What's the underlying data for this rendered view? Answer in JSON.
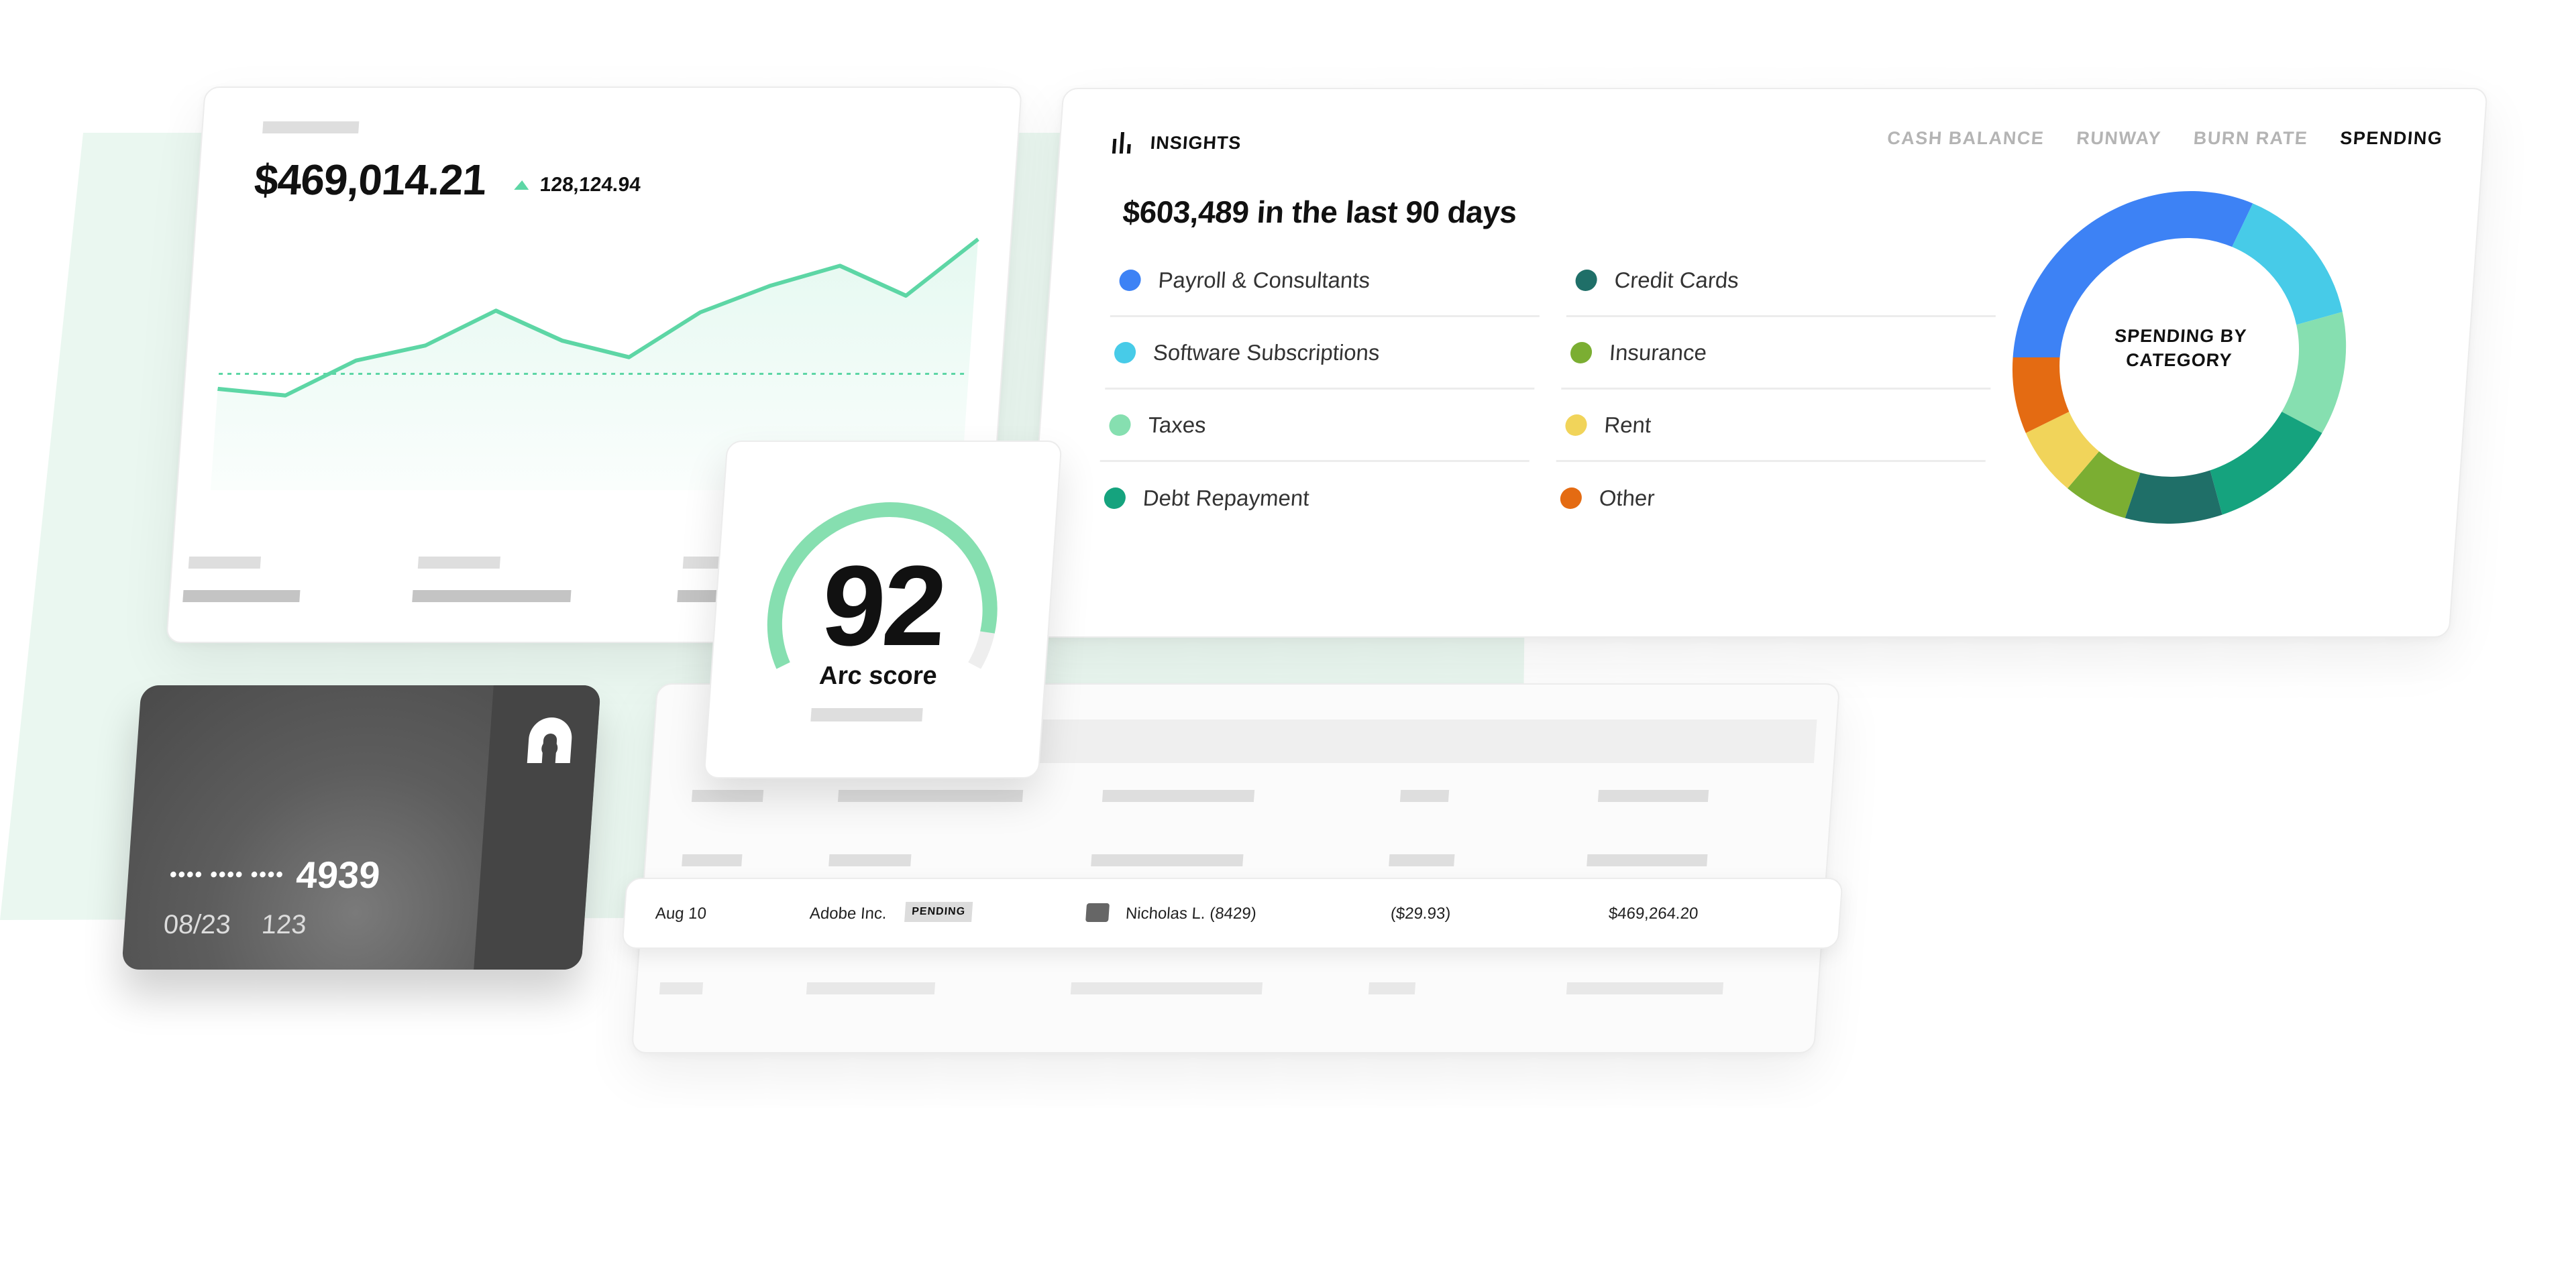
{
  "balance_card": {
    "balance": "$469,014.21",
    "change": "128,124.94",
    "change_icon": "triangle-up-icon",
    "accent_color": "#5dd6a5",
    "sparkline": {
      "type": "area",
      "values": [
        17,
        13,
        34,
        43,
        64,
        46,
        36,
        63,
        79,
        91,
        73,
        107
      ],
      "reference_line": 26
    }
  },
  "insights": {
    "title": "INSIGHTS",
    "icon": "bar-chart-icon",
    "tabs": [
      {
        "label": "CASH BALANCE",
        "active": false
      },
      {
        "label": "RUNWAY",
        "active": false
      },
      {
        "label": "BURN RATE",
        "active": false
      },
      {
        "label": "SPENDING",
        "active": true
      }
    ],
    "headline": "$603,489 in the last 90 days",
    "donut_label": "SPENDING BY CATEGORY",
    "categories": [
      {
        "name": "Payroll & Consultants",
        "color": "#3d82f5",
        "share": 31.1
      },
      {
        "name": "Software Subscriptions",
        "color": "#47cbe8",
        "share": 14.4
      },
      {
        "name": "Taxes",
        "color": "#86dfb0",
        "share": 11.9
      },
      {
        "name": "Debt Repayment",
        "color": "#15a37e",
        "share": 12.2
      },
      {
        "name": "Credit Cards",
        "color": "#1f6f68",
        "share": 9.4
      },
      {
        "name": "Insurance",
        "color": "#7bae32",
        "share": 6.4
      },
      {
        "name": "Rent",
        "color": "#f1d45a",
        "share": 6.9
      },
      {
        "name": "Other",
        "color": "#e46b12",
        "share": 7.5
      }
    ]
  },
  "arc_score": {
    "score": "92",
    "label": "Arc score",
    "fraction": 0.92,
    "color": "#86dfb0"
  },
  "credit_card": {
    "masked": "•••• •••• ••••",
    "last4": "4939",
    "expiry": "08/23",
    "cvv": "123",
    "logo": "arc-logo-icon"
  },
  "transaction": {
    "date": "Aug 10",
    "merchant": "Adobe Inc.",
    "status": "PENDING",
    "card_holder": "Nicholas L. (8429)",
    "amount": "($29.93)",
    "balance": "$469,264.20"
  }
}
